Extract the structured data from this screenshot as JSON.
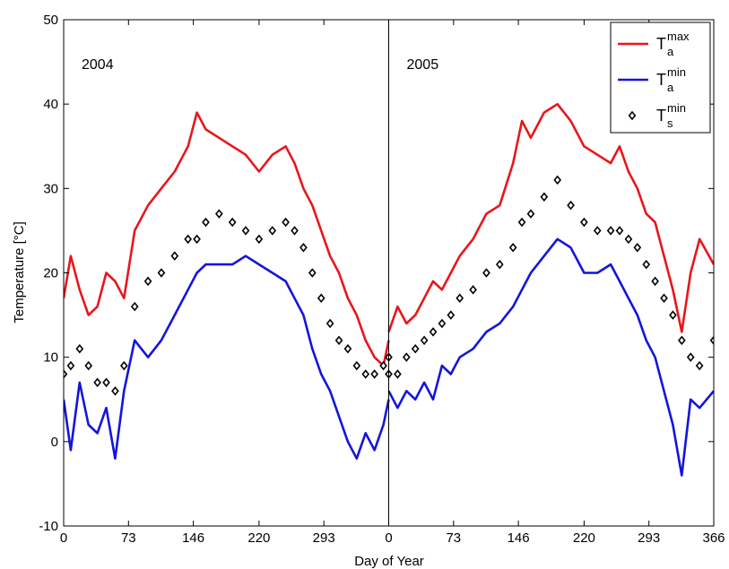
{
  "chart_data": {
    "type": "line",
    "xlabel": "Day of Year",
    "ylabel": "Temperature [°C]",
    "ylim": [
      -10,
      50
    ],
    "yticks": [
      -10,
      0,
      10,
      20,
      30,
      40,
      50
    ],
    "grid": false,
    "legend_position": "top-right",
    "panels": [
      {
        "label": "2004",
        "xlim": [
          0,
          366
        ],
        "xticks": [
          0,
          73,
          146,
          220,
          293
        ],
        "series": [
          {
            "name": "T_a^max",
            "color": "#e8161c",
            "x": [
              0,
              8,
              18,
              28,
              38,
              48,
              58,
              68,
              80,
              95,
              110,
              125,
              140,
              150,
              160,
              175,
              190,
              205,
              220,
              235,
              250,
              260,
              270,
              280,
              290,
              300,
              310,
              320,
              330,
              340,
              350,
              360,
              366
            ],
            "y": [
              17,
              22,
              18,
              15,
              16,
              20,
              19,
              17,
              25,
              28,
              30,
              32,
              35,
              39,
              37,
              36,
              35,
              34,
              32,
              34,
              35,
              33,
              30,
              28,
              25,
              22,
              20,
              17,
              15,
              12,
              10,
              9,
              12
            ]
          },
          {
            "name": "T_a^min",
            "color": "#1414dc",
            "x": [
              0,
              8,
              18,
              28,
              38,
              48,
              58,
              68,
              80,
              95,
              110,
              125,
              140,
              150,
              160,
              175,
              190,
              205,
              220,
              235,
              250,
              260,
              270,
              280,
              290,
              300,
              310,
              320,
              330,
              340,
              350,
              360,
              366
            ],
            "y": [
              5,
              -1,
              7,
              2,
              1,
              4,
              -2,
              6,
              12,
              10,
              12,
              15,
              18,
              20,
              21,
              21,
              21,
              22,
              21,
              20,
              19,
              17,
              15,
              11,
              8,
              6,
              3,
              0,
              -2,
              1,
              -1,
              2,
              5
            ]
          },
          {
            "name": "T_s^min",
            "color": "#000000",
            "marker": "diamond",
            "x": [
              0,
              8,
              18,
              28,
              38,
              48,
              58,
              68,
              80,
              95,
              110,
              125,
              140,
              150,
              160,
              175,
              190,
              205,
              220,
              235,
              250,
              260,
              270,
              280,
              290,
              300,
              310,
              320,
              330,
              340,
              350,
              360,
              366
            ],
            "y": [
              8,
              9,
              11,
              9,
              7,
              7,
              6,
              9,
              16,
              19,
              20,
              22,
              24,
              24,
              26,
              27,
              26,
              25,
              24,
              25,
              26,
              25,
              23,
              20,
              17,
              14,
              12,
              11,
              9,
              8,
              8,
              9,
              10
            ]
          }
        ]
      },
      {
        "label": "2005",
        "xlim": [
          0,
          366
        ],
        "xticks": [
          0,
          73,
          146,
          220,
          293,
          366
        ],
        "series": [
          {
            "name": "T_a^max",
            "color": "#e8161c",
            "x": [
              0,
              10,
              20,
              30,
              40,
              50,
              60,
              70,
              80,
              95,
              110,
              125,
              140,
              150,
              160,
              175,
              190,
              205,
              220,
              235,
              250,
              260,
              270,
              280,
              290,
              300,
              310,
              320,
              330,
              340,
              350,
              366
            ],
            "y": [
              13,
              16,
              14,
              15,
              17,
              19,
              18,
              20,
              22,
              24,
              27,
              28,
              33,
              38,
              36,
              39,
              40,
              38,
              35,
              34,
              33,
              35,
              32,
              30,
              27,
              26,
              22,
              18,
              13,
              20,
              24,
              21
            ]
          },
          {
            "name": "T_a^min",
            "color": "#1414dc",
            "x": [
              0,
              10,
              20,
              30,
              40,
              50,
              60,
              70,
              80,
              95,
              110,
              125,
              140,
              150,
              160,
              175,
              190,
              205,
              220,
              235,
              250,
              260,
              270,
              280,
              290,
              300,
              310,
              320,
              330,
              340,
              350,
              366
            ],
            "y": [
              6,
              4,
              6,
              5,
              7,
              5,
              9,
              8,
              10,
              11,
              13,
              14,
              16,
              18,
              20,
              22,
              24,
              23,
              20,
              20,
              21,
              19,
              17,
              15,
              12,
              10,
              6,
              2,
              -4,
              5,
              4,
              6
            ]
          },
          {
            "name": "T_s^min",
            "color": "#000000",
            "marker": "diamond",
            "x": [
              0,
              10,
              20,
              30,
              40,
              50,
              60,
              70,
              80,
              95,
              110,
              125,
              140,
              150,
              160,
              175,
              190,
              205,
              220,
              235,
              250,
              260,
              270,
              280,
              290,
              300,
              310,
              320,
              330,
              340,
              350,
              366
            ],
            "y": [
              8,
              8,
              10,
              11,
              12,
              13,
              14,
              15,
              17,
              18,
              20,
              21,
              23,
              26,
              27,
              29,
              31,
              28,
              26,
              25,
              25,
              25,
              24,
              23,
              21,
              19,
              17,
              15,
              12,
              10,
              9,
              12
            ]
          }
        ]
      }
    ]
  }
}
